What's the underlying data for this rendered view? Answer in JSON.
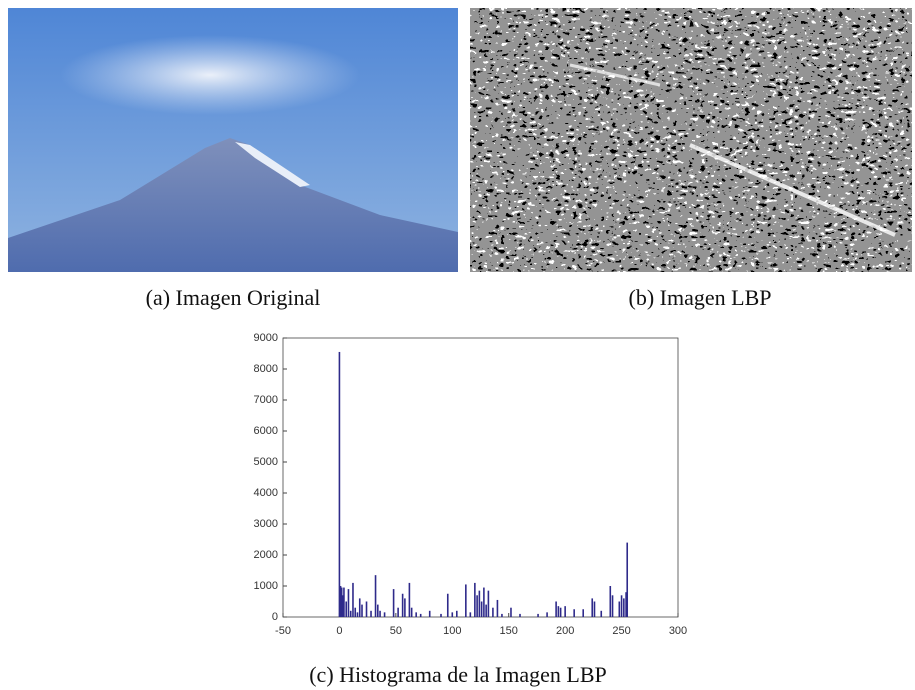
{
  "captions": {
    "a": "(a) Imagen Original",
    "b": "(b) Imagen LBP",
    "c": "(c) Histograma de la Imagen LBP"
  },
  "chart_data": {
    "type": "bar",
    "color": "#2e2a8a",
    "x": [
      0,
      1,
      2,
      3,
      4,
      6,
      8,
      10,
      12,
      14,
      16,
      18,
      20,
      24,
      28,
      32,
      34,
      36,
      40,
      48,
      52,
      56,
      58,
      62,
      64,
      68,
      72,
      80,
      90,
      96,
      100,
      104,
      112,
      116,
      120,
      122,
      124,
      126,
      128,
      130,
      132,
      136,
      140,
      144,
      152,
      160,
      176,
      184,
      192,
      194,
      196,
      200,
      208,
      216,
      224,
      226,
      232,
      240,
      242,
      248,
      250,
      252,
      254,
      255
    ],
    "values": [
      8550,
      1000,
      950,
      700,
      950,
      500,
      900,
      200,
      1100,
      300,
      150,
      600,
      400,
      500,
      200,
      1350,
      400,
      200,
      150,
      900,
      300,
      750,
      600,
      1100,
      300,
      150,
      100,
      200,
      100,
      750,
      150,
      200,
      1050,
      150,
      1100,
      700,
      850,
      500,
      950,
      400,
      850,
      300,
      550,
      100,
      300,
      100,
      100,
      150,
      500,
      350,
      300,
      350,
      250,
      250,
      600,
      500,
      200,
      1000,
      700,
      500,
      700,
      600,
      800,
      2400
    ],
    "xlim": [
      -50,
      300
    ],
    "ylim": [
      0,
      9000
    ],
    "xticks": [
      -50,
      0,
      50,
      100,
      150,
      200,
      250,
      300
    ],
    "yticks": [
      0,
      1000,
      2000,
      3000,
      4000,
      5000,
      6000,
      7000,
      8000,
      9000
    ]
  }
}
